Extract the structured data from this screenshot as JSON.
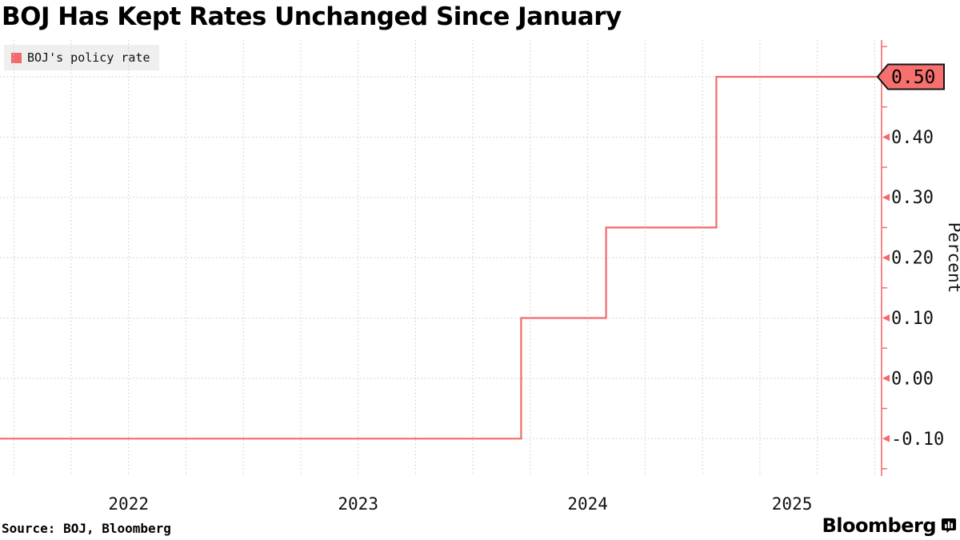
{
  "title": "BOJ Has Kept Rates Unchanged Since January",
  "legend": {
    "label": "BOJ's policy rate"
  },
  "source": "Source: BOJ, Bloomberg",
  "branding": {
    "wordmark": "Bloomberg"
  },
  "colors": {
    "series": "#f3696c",
    "axis": "#f3696c",
    "callout_fill": "#f7706e",
    "callout_border": "#141414",
    "grid": "#c8c8c8",
    "text": "#111111",
    "legend_bg": "#efefef"
  },
  "chart_data": {
    "type": "line",
    "step": true,
    "title": "BOJ Has Kept Rates Unchanged Since January",
    "ylabel": "Percent",
    "xlabel": "",
    "legend_position": "top-left",
    "grid": true,
    "xlim": [
      2021.94,
      2025.78
    ],
    "ylim": [
      -0.162,
      0.561
    ],
    "series": [
      {
        "name": "BOJ's policy rate",
        "points": [
          [
            2021.94,
            -0.1
          ],
          [
            2024.21,
            -0.1
          ],
          [
            2024.21,
            0.1
          ],
          [
            2024.58,
            0.1
          ],
          [
            2024.58,
            0.25
          ],
          [
            2025.06,
            0.25
          ],
          [
            2025.06,
            0.5
          ],
          [
            2025.78,
            0.5
          ]
        ]
      }
    ],
    "x_year_labels": [
      {
        "label": "2022",
        "t": 2022.5
      },
      {
        "label": "2023",
        "t": 2023.5
      },
      {
        "label": "2024",
        "t": 2024.5
      },
      {
        "label": "2025",
        "t": 2025.39
      }
    ],
    "x_grid": {
      "start": 2022.0,
      "step": 0.25,
      "end": 2025.75
    },
    "y_major_ticks": [
      {
        "v": 0.4,
        "label": "0.40"
      },
      {
        "v": 0.3,
        "label": "0.30"
      },
      {
        "v": 0.2,
        "label": "0.20"
      },
      {
        "v": 0.1,
        "label": "0.10"
      },
      {
        "v": 0.0,
        "label": "0.00"
      },
      {
        "v": -0.1,
        "label": "-0.10"
      }
    ],
    "y_minor_ticks": [
      0.55,
      0.45,
      0.35,
      0.25,
      0.15,
      0.05,
      -0.05,
      -0.15
    ],
    "last_value": {
      "v": 0.5,
      "label": "0.50"
    }
  }
}
